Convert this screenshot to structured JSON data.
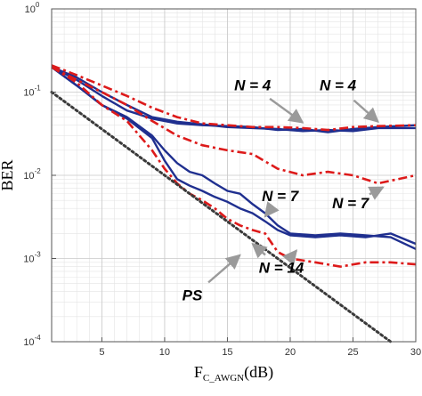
{
  "chart_data": {
    "type": "line",
    "xlabel_main": "F",
    "xlabel_sub": "C_AWGN",
    "xlabel_unit": "(dB)",
    "ylabel": "BER",
    "xlim": [
      1,
      30
    ],
    "ylim_log10": [
      -4,
      0
    ],
    "y_scale": "log",
    "x_ticks": [
      5,
      10,
      15,
      20,
      25,
      30
    ],
    "x_tick_labels": [
      "5",
      "10",
      "15",
      "20",
      "25",
      "30"
    ],
    "y_ticks_log10": [
      -4,
      -3,
      -2,
      -1,
      0
    ],
    "grid": true,
    "minor_grid": true,
    "colors": {
      "blue": "#1f2f8f",
      "red": "#dd1a1a",
      "ps": "#3a3a3a",
      "arrow": "#9a9a9a"
    },
    "series": [
      {
        "color": "blue",
        "style": "solid",
        "x": [
          1,
          3,
          5,
          7,
          9,
          11,
          13,
          15,
          17,
          19,
          21,
          23,
          25,
          27,
          30
        ],
        "y": [
          0.2,
          0.14,
          0.09,
          0.06,
          0.048,
          0.042,
          0.04,
          0.039,
          0.038,
          0.035,
          0.036,
          0.033,
          0.036,
          0.038,
          0.04
        ]
      },
      {
        "color": "blue",
        "style": "solid",
        "x": [
          1,
          3,
          5,
          7,
          9,
          11,
          13,
          15,
          17,
          19,
          21,
          23,
          25,
          27,
          30
        ],
        "y": [
          0.2,
          0.15,
          0.1,
          0.07,
          0.05,
          0.044,
          0.041,
          0.038,
          0.037,
          0.036,
          0.034,
          0.035,
          0.034,
          0.037,
          0.037
        ]
      },
      {
        "color": "blue",
        "style": "solid",
        "x": [
          1,
          3,
          5,
          7,
          9,
          10,
          11,
          12,
          13,
          14,
          15,
          16,
          17,
          18,
          19,
          20,
          22,
          24,
          26,
          28,
          30
        ],
        "y": [
          0.2,
          0.12,
          0.07,
          0.05,
          0.03,
          0.02,
          0.014,
          0.011,
          0.01,
          0.008,
          0.0065,
          0.006,
          0.0045,
          0.0035,
          0.0025,
          0.002,
          0.0019,
          0.002,
          0.0019,
          0.0018,
          0.0013
        ]
      },
      {
        "color": "blue",
        "style": "solid",
        "x": [
          1,
          3,
          5,
          7,
          9,
          10,
          11,
          12,
          13,
          14,
          15,
          16,
          17,
          18,
          19,
          20,
          22,
          24,
          26,
          28,
          30
        ],
        "y": [
          0.2,
          0.12,
          0.07,
          0.048,
          0.028,
          0.015,
          0.009,
          0.0075,
          0.0065,
          0.0055,
          0.0048,
          0.004,
          0.0035,
          0.0028,
          0.0022,
          0.0019,
          0.0018,
          0.0019,
          0.0018,
          0.002,
          0.0015
        ]
      },
      {
        "color": "red",
        "style": "dashdot",
        "x": [
          1,
          3,
          5,
          7,
          9,
          11,
          13,
          15,
          17,
          19,
          21,
          23,
          25,
          27,
          30
        ],
        "y": [
          0.21,
          0.16,
          0.12,
          0.09,
          0.065,
          0.05,
          0.042,
          0.04,
          0.038,
          0.038,
          0.037,
          0.035,
          0.038,
          0.039,
          0.04
        ]
      },
      {
        "color": "red",
        "style": "dashdot",
        "x": [
          1,
          3,
          5,
          7,
          9,
          11,
          13,
          15,
          17,
          19,
          21,
          23,
          25,
          27,
          30
        ],
        "y": [
          0.2,
          0.14,
          0.1,
          0.07,
          0.045,
          0.03,
          0.023,
          0.02,
          0.018,
          0.012,
          0.01,
          0.011,
          0.01,
          0.008,
          0.01
        ]
      },
      {
        "color": "red",
        "style": "dashdot",
        "x": [
          1,
          3,
          5,
          7,
          9,
          10,
          11,
          12,
          13,
          14,
          15,
          16,
          17,
          18,
          19,
          20,
          22,
          24,
          26,
          28,
          30
        ],
        "y": [
          0.2,
          0.13,
          0.07,
          0.045,
          0.02,
          0.012,
          0.008,
          0.006,
          0.005,
          0.004,
          0.003,
          0.0025,
          0.0022,
          0.002,
          0.0012,
          0.001,
          0.0009,
          0.0008,
          0.0009,
          0.0009,
          0.00085
        ]
      },
      {
        "color": "ps",
        "style": "dotted",
        "x": [
          1,
          28
        ],
        "y": [
          0.1,
          0.0001
        ]
      }
    ],
    "annotations": [
      {
        "text": "N = 4",
        "x": 17,
        "y": 0.118,
        "ax": 21,
        "ay": 0.043
      },
      {
        "text": "N = 4",
        "x": 23.8,
        "y": 0.118,
        "ax": 27,
        "ay": 0.044
      },
      {
        "text": "N = 7",
        "x": 19.2,
        "y": 0.0055,
        "ax": 18,
        "ay": 0.0032
      },
      {
        "text": "N = 7",
        "x": 24.8,
        "y": 0.0045,
        "ax": 27.4,
        "ay": 0.0072
      },
      {
        "text": "N = 14",
        "x": 19.3,
        "y": 0.00075,
        "ax": 17,
        "ay": 0.0015
      },
      {
        "text": "N = 14",
        "x": 19.3,
        "y": 0.00075,
        "ax": 20.5,
        "ay": 0.00125
      },
      {
        "text": "PS",
        "x": 12.2,
        "y": 0.00035,
        "ax": 16,
        "ay": 0.0011
      }
    ]
  }
}
